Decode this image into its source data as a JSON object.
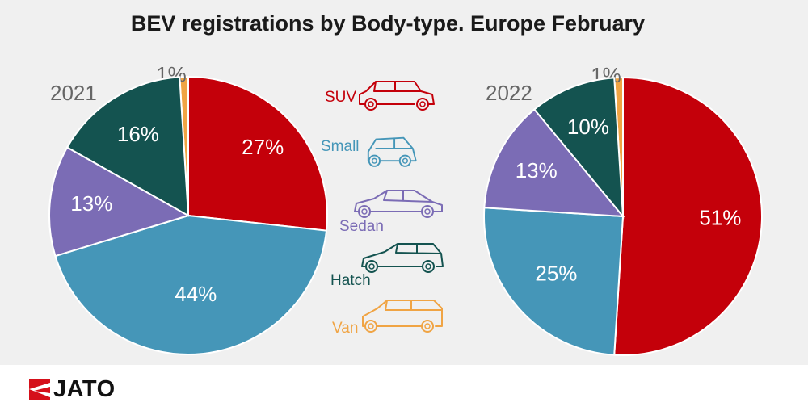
{
  "title": "BEV registrations by Body-type. Europe February",
  "colors": {
    "SUV": "#c4000a",
    "Small": "#4596b8",
    "Sedan": "#7b6cb5",
    "Hatch": "#145350",
    "Van": "#f0a444"
  },
  "icons": [
    "suv-car-icon",
    "small-car-icon",
    "sedan-car-icon",
    "hatch-car-icon",
    "van-car-icon"
  ],
  "chart_data": [
    {
      "type": "pie",
      "title": "2021",
      "categories": [
        "SUV",
        "Small",
        "Sedan",
        "Hatch",
        "Van"
      ],
      "values": [
        27,
        44,
        13,
        16,
        1
      ],
      "labels": [
        "27%",
        "44%",
        "13%",
        "16%",
        "1%"
      ]
    },
    {
      "type": "pie",
      "title": "2022",
      "categories": [
        "SUV",
        "Small",
        "Sedan",
        "Hatch",
        "Van"
      ],
      "values": [
        51,
        25,
        13,
        10,
        1
      ],
      "labels": [
        "51%",
        "25%",
        "13%",
        "10%",
        "1%"
      ]
    }
  ],
  "legend": [
    {
      "label": "SUV",
      "icon": "suv-car-icon"
    },
    {
      "label": "Small",
      "icon": "small-car-icon"
    },
    {
      "label": "Sedan",
      "icon": "sedan-car-icon"
    },
    {
      "label": "Hatch",
      "icon": "hatch-car-icon"
    },
    {
      "label": "Van",
      "icon": "van-car-icon"
    }
  ],
  "brand": {
    "name": "JATO"
  }
}
